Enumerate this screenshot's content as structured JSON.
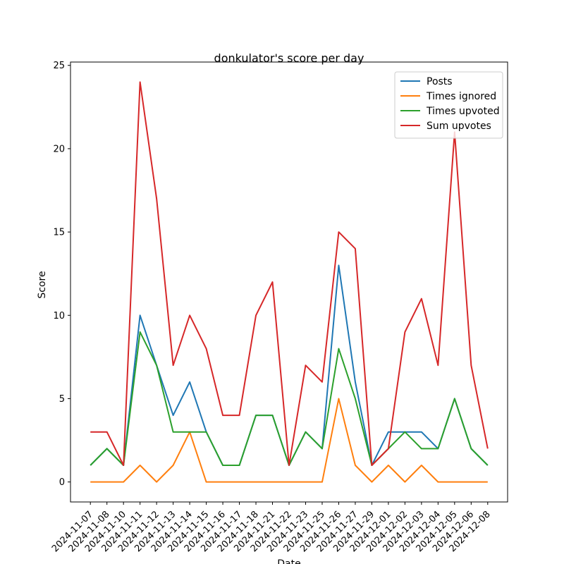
{
  "chart_data": {
    "type": "line",
    "title": "donkulator's score per day",
    "xlabel": "Date",
    "ylabel": "Score",
    "ylim": [
      -1.2,
      25.2
    ],
    "yticks": [
      0,
      5,
      10,
      15,
      20,
      25
    ],
    "grid": false,
    "legend_position": "top-right",
    "x": [
      "2024-11-07",
      "2024-11-08",
      "2024-11-10",
      "2024-11-11",
      "2024-11-12",
      "2024-11-13",
      "2024-11-14",
      "2024-11-15",
      "2024-11-16",
      "2024-11-17",
      "2024-11-18",
      "2024-11-21",
      "2024-11-22",
      "2024-11-23",
      "2024-11-25",
      "2024-11-26",
      "2024-11-27",
      "2024-11-29",
      "2024-12-01",
      "2024-12-02",
      "2024-12-03",
      "2024-12-04",
      "2024-12-05",
      "2024-12-06",
      "2024-12-08"
    ],
    "series": [
      {
        "name": "Posts",
        "color": "#1f77b4",
        "values": [
          1,
          2,
          1,
          10,
          7,
          4,
          6,
          3,
          1,
          1,
          4,
          4,
          1,
          3,
          2,
          13,
          6,
          1,
          3,
          3,
          3,
          2,
          5,
          2,
          1
        ]
      },
      {
        "name": "Times ignored",
        "color": "#ff7f0e",
        "values": [
          0,
          0,
          0,
          1,
          0,
          1,
          3,
          0,
          0,
          0,
          0,
          0,
          0,
          0,
          0,
          5,
          1,
          0,
          1,
          0,
          1,
          0,
          0,
          0,
          0
        ]
      },
      {
        "name": "Times upvoted",
        "color": "#2ca02c",
        "values": [
          1,
          2,
          1,
          9,
          7,
          3,
          3,
          3,
          1,
          1,
          4,
          4,
          1,
          3,
          2,
          8,
          5,
          1,
          2,
          3,
          2,
          2,
          5,
          2,
          1
        ]
      },
      {
        "name": "Sum upvotes",
        "color": "#d62728",
        "values": [
          3,
          3,
          1,
          24,
          17,
          7,
          10,
          8,
          4,
          4,
          10,
          12,
          1,
          7,
          6,
          15,
          14,
          1,
          2,
          9,
          11,
          7,
          21,
          7,
          2
        ]
      }
    ]
  }
}
